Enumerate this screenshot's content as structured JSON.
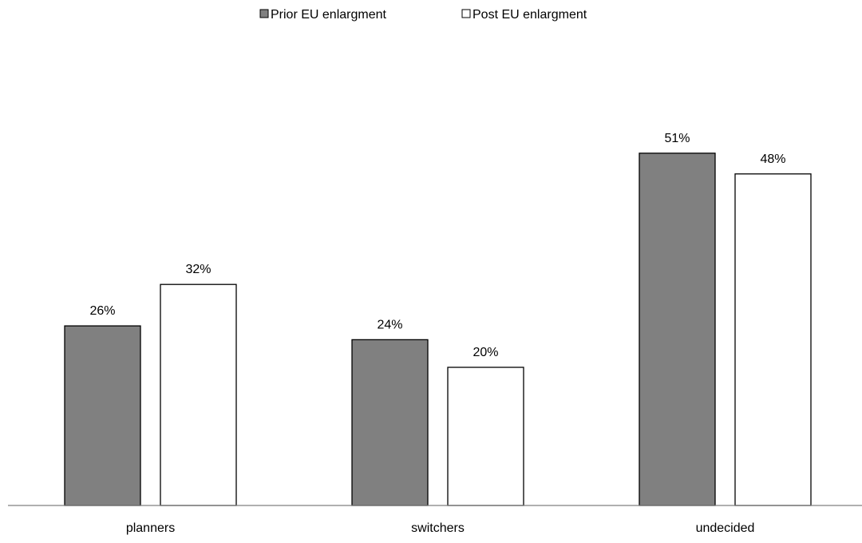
{
  "chart_data": {
    "type": "bar",
    "title": "",
    "xlabel": "",
    "ylabel": "",
    "categories": [
      "planners",
      "switchers",
      "undecided"
    ],
    "series": [
      {
        "name": "Prior EU enlargment",
        "values": [
          26,
          24,
          51
        ],
        "labels": [
          "26%",
          "24%",
          "51%"
        ],
        "color": "#808080"
      },
      {
        "name": "Post EU enlargment",
        "values": [
          32,
          20,
          48
        ],
        "labels": [
          "32%",
          "20%",
          "48%"
        ],
        "color": "#ffffff"
      }
    ],
    "value_unit": "%",
    "ylim": [
      0,
      60
    ],
    "grid": false,
    "y_axis_visible": false,
    "legend_position": "top-center",
    "bar_outline_color": "#000000",
    "axis_color": "#808080"
  }
}
